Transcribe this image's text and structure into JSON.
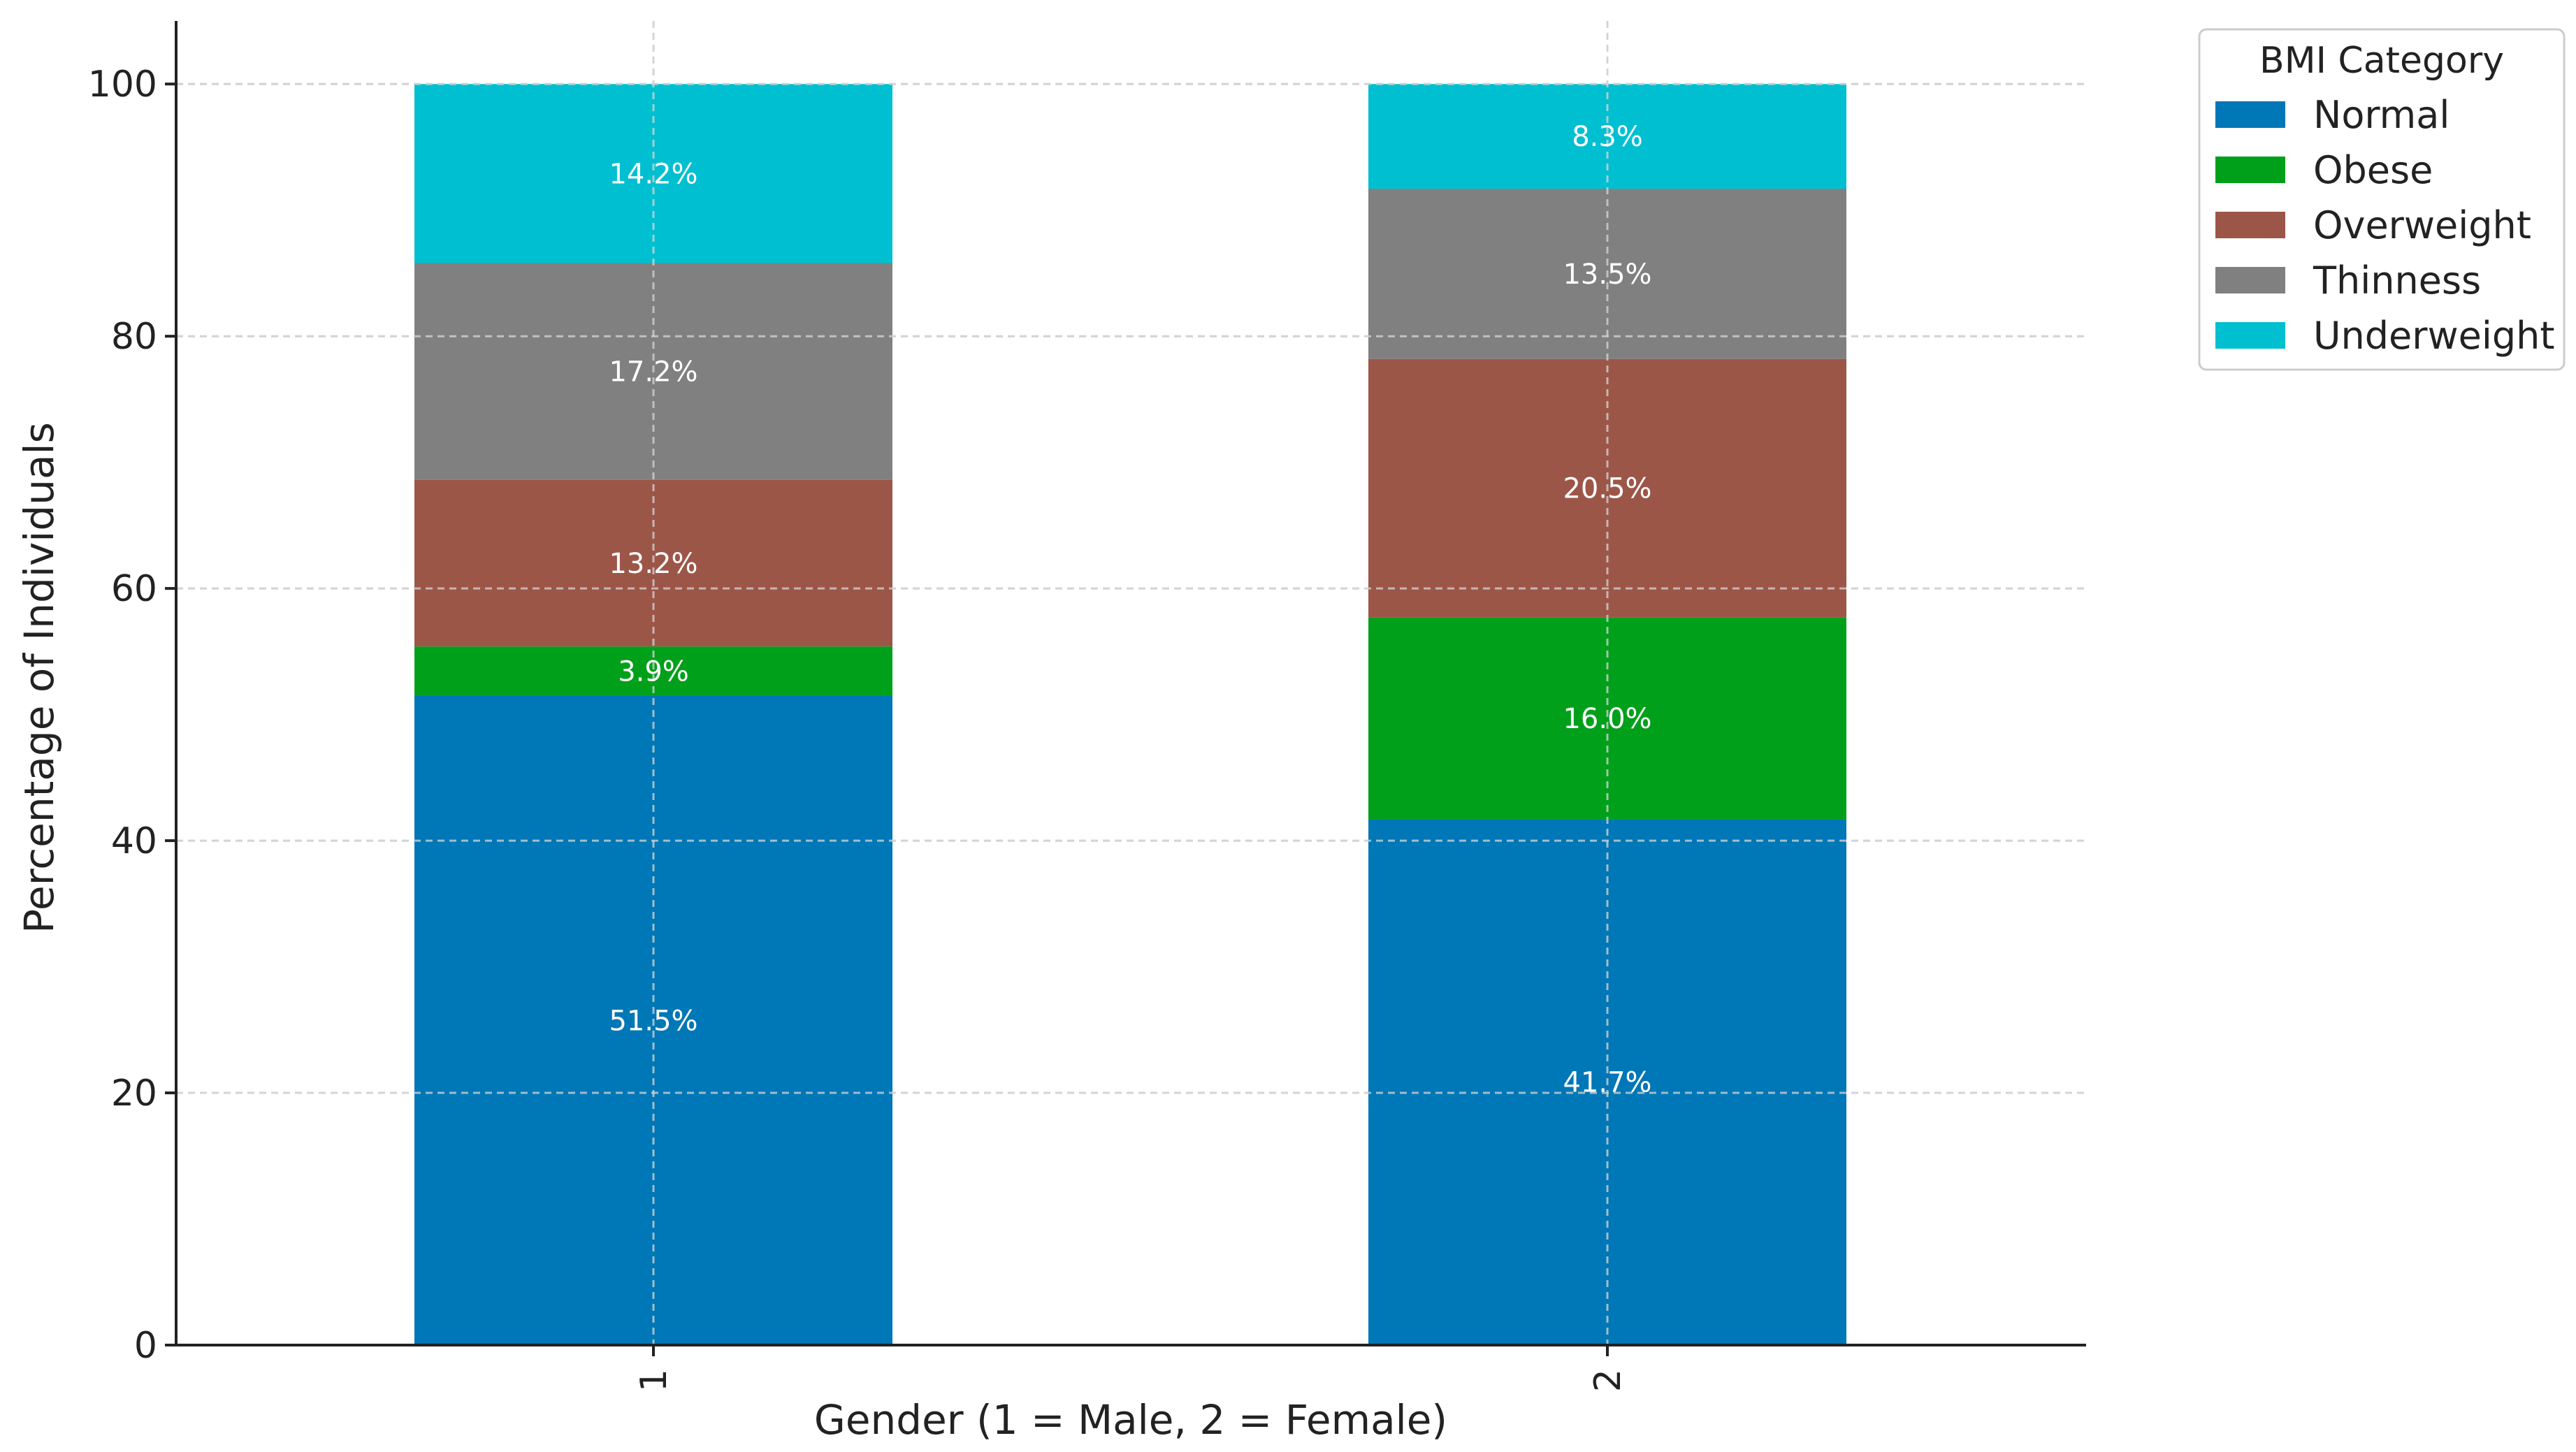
{
  "chart_data": {
    "type": "bar",
    "stacked": true,
    "title": "",
    "xlabel": "Gender (1 = Male, 2 = Female)",
    "ylabel": "Percentage of Individuals",
    "categories": [
      "1",
      "2"
    ],
    "ylim": [
      0,
      105
    ],
    "yticks": [
      "0",
      "20",
      "40",
      "60",
      "80",
      "100"
    ],
    "grid": true,
    "legend": {
      "title": "BMI Category",
      "placement": "upper-right-outside"
    },
    "series": [
      {
        "name": "Normal",
        "color": "#0077b6",
        "values": [
          51.5,
          41.7
        ],
        "labels": [
          "51.5%",
          "41.7%"
        ]
      },
      {
        "name": "Obese",
        "color": "#00a01a",
        "values": [
          3.9,
          16.0
        ],
        "labels": [
          "3.9%",
          "16.0%"
        ]
      },
      {
        "name": "Overweight",
        "color": "#9c5648",
        "values": [
          13.2,
          20.5
        ],
        "labels": [
          "13.2%",
          "20.5%"
        ]
      },
      {
        "name": "Thinness",
        "color": "#808080",
        "values": [
          17.2,
          13.5
        ],
        "labels": [
          "17.2%",
          "13.5%"
        ]
      },
      {
        "name": "Underweight",
        "color": "#00bfd1",
        "values": [
          14.2,
          8.3
        ],
        "labels": [
          "14.2%",
          "8.3%"
        ]
      }
    ]
  }
}
